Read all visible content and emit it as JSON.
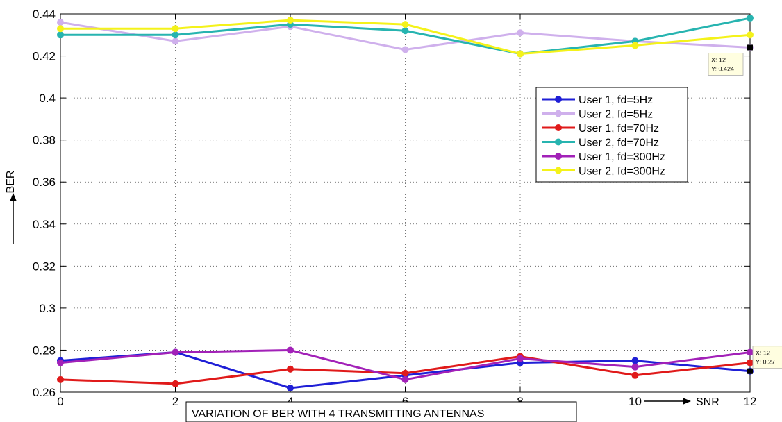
{
  "chart_data": {
    "type": "line",
    "title": "VARIATION OF BER WITH 4 TRANSMITTING ANTENNAS",
    "xlabel": "SNR",
    "ylabel": "BER",
    "x": [
      0,
      2,
      4,
      6,
      8,
      10,
      12
    ],
    "xlim": [
      0,
      12
    ],
    "ylim": [
      0.26,
      0.44
    ],
    "xticks": [
      "0",
      "2",
      "4",
      "6",
      "8",
      "10",
      "12"
    ],
    "yticks": [
      "0.26",
      "0.28",
      "0.3",
      "0.32",
      "0.34",
      "0.36",
      "0.38",
      "0.4",
      "0.42",
      "0.44"
    ],
    "grid": true,
    "legend_position": "upper-right",
    "series": [
      {
        "name": "User 1, fd=5Hz",
        "color": "#1f1fd6",
        "values": [
          0.275,
          0.279,
          0.262,
          0.268,
          0.274,
          0.275,
          0.27
        ]
      },
      {
        "name": "User 2, fd=5Hz",
        "color": "#cfb0ec",
        "values": [
          0.436,
          0.427,
          0.434,
          0.423,
          0.431,
          0.427,
          0.424
        ]
      },
      {
        "name": "User 1, fd=70Hz",
        "color": "#e01a1a",
        "values": [
          0.266,
          0.264,
          0.271,
          0.269,
          0.277,
          0.268,
          0.274
        ]
      },
      {
        "name": "User 2, fd=70Hz",
        "color": "#27b4b0",
        "values": [
          0.43,
          0.43,
          0.435,
          0.432,
          0.421,
          0.427,
          0.438
        ]
      },
      {
        "name": "User 1, fd=300Hz",
        "color": "#a221b8",
        "values": [
          0.274,
          0.279,
          0.28,
          0.266,
          0.276,
          0.272,
          0.279
        ]
      },
      {
        "name": "User 2, fd=300Hz",
        "color": "#f4f21a",
        "values": [
          0.433,
          0.433,
          0.437,
          0.435,
          0.421,
          0.425,
          0.43
        ]
      }
    ],
    "annotations": [
      {
        "x_label": "X: 12",
        "y_label": "Y: 0.424",
        "x": 12,
        "y": 0.424
      },
      {
        "x_label": "X: 12",
        "y_label": "Y: 0.27",
        "x": 12,
        "y": 0.27
      }
    ]
  }
}
